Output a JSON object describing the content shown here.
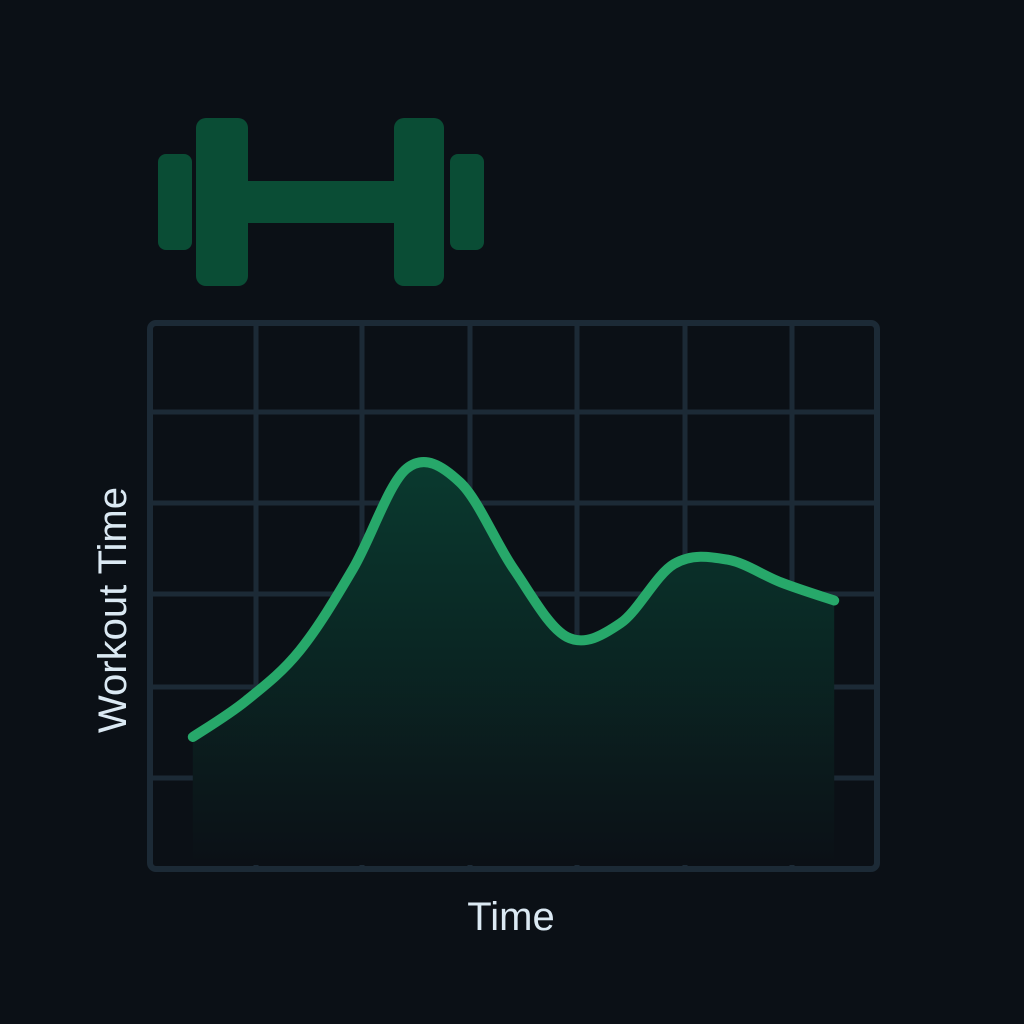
{
  "icon": {
    "name": "dumbbell-icon",
    "color": "#0a4d35"
  },
  "colors": {
    "background": "#0b1016",
    "grid": "#1c2a36",
    "line": "#27a86a",
    "fill_top": "#0a3a2f",
    "label": "#dbe9f3"
  },
  "chart_data": {
    "type": "area",
    "title": "",
    "xlabel": "Time",
    "ylabel": "Workout Time",
    "x": [
      0,
      0.5,
      1,
      1.5,
      2,
      2.5,
      3,
      3.5,
      4,
      4.5,
      5,
      5.5,
      6
    ],
    "y": [
      1.45,
      1.85,
      2.4,
      3.3,
      4.4,
      4.25,
      3.3,
      2.55,
      2.7,
      3.35,
      3.4,
      3.15,
      2.95
    ],
    "xlim": [
      -0.4,
      6.4
    ],
    "ylim": [
      0,
      6
    ],
    "grid": true,
    "legend": "none"
  }
}
